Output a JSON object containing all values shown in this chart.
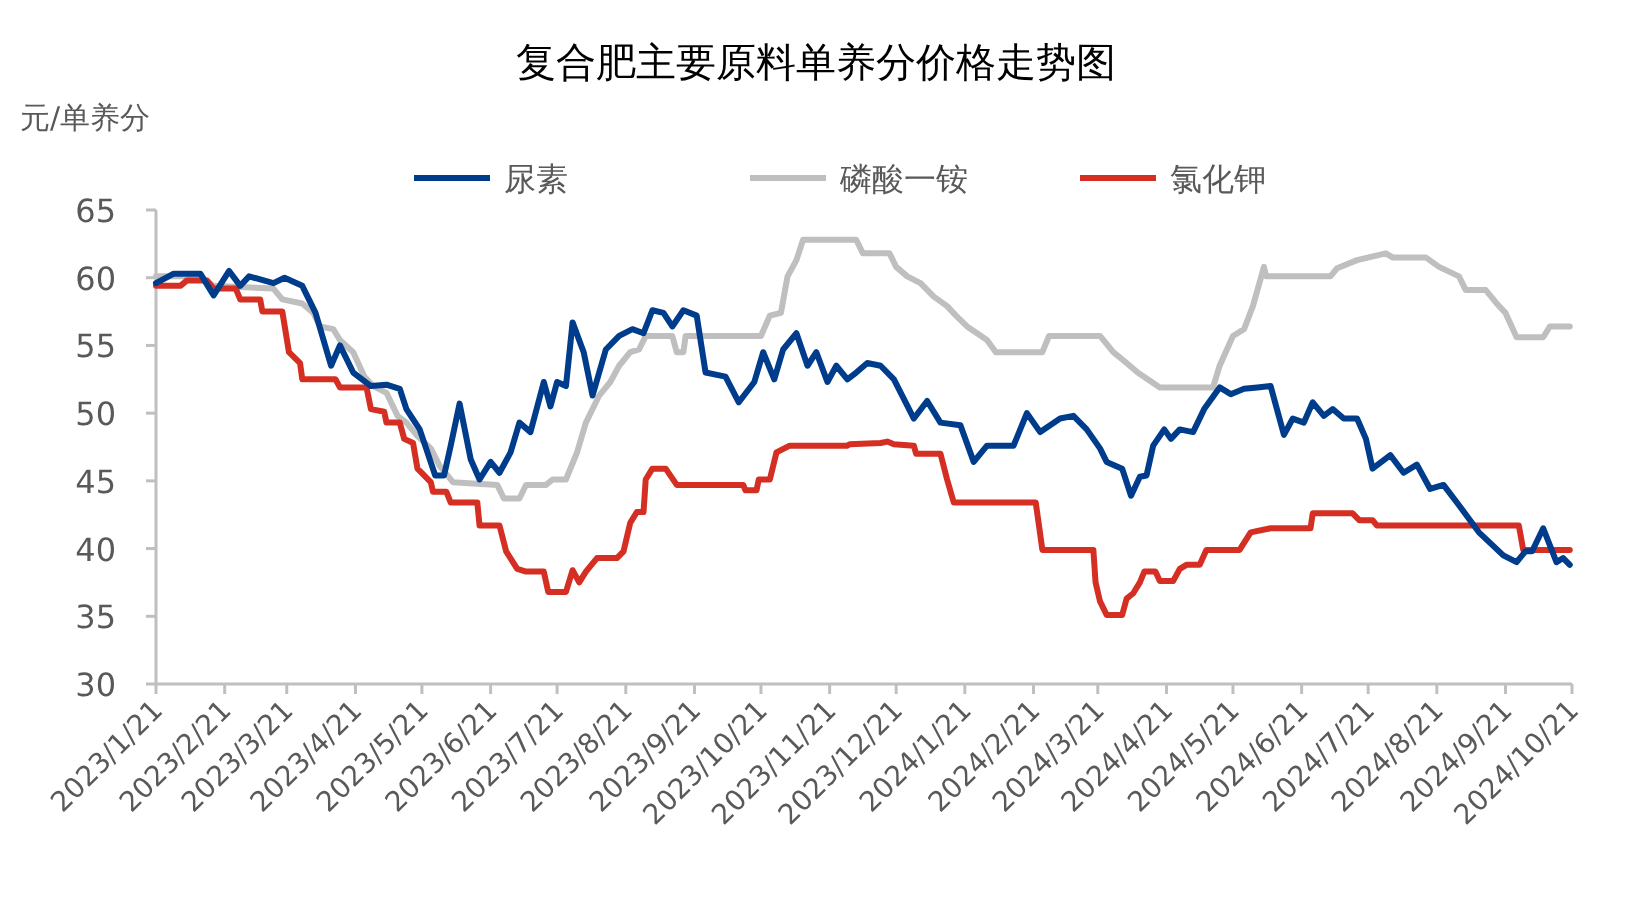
{
  "chart_data": {
    "type": "line",
    "title": "复合肥主要原料单养分价格走势图",
    "ylabel": "元/单养分",
    "xlim": [
      "2023-01-21",
      "2024-10-21"
    ],
    "xticks": [
      {
        "value": "2023-01-21",
        "label": "2023/1/21"
      },
      {
        "value": "2023-02-21",
        "label": "2023/2/21"
      },
      {
        "value": "2023-03-21",
        "label": "2023/3/21"
      },
      {
        "value": "2023-04-21",
        "label": "2023/4/21"
      },
      {
        "value": "2023-05-21",
        "label": "2023/5/21"
      },
      {
        "value": "2023-06-21",
        "label": "2023/6/21"
      },
      {
        "value": "2023-07-21",
        "label": "2023/7/21"
      },
      {
        "value": "2023-08-21",
        "label": "2023/8/21"
      },
      {
        "value": "2023-09-21",
        "label": "2023/9/21"
      },
      {
        "value": "2023-10-21",
        "label": "2023/10/21"
      },
      {
        "value": "2023-11-21",
        "label": "2023/11/21"
      },
      {
        "value": "2023-12-21",
        "label": "2023/12/21"
      },
      {
        "value": "2024-01-21",
        "label": "2024/1/21"
      },
      {
        "value": "2024-02-21",
        "label": "2024/2/21"
      },
      {
        "value": "2024-03-21",
        "label": "2024/3/21"
      },
      {
        "value": "2024-04-21",
        "label": "2024/4/21"
      },
      {
        "value": "2024-05-21",
        "label": "2024/5/21"
      },
      {
        "value": "2024-06-21",
        "label": "2024/6/21"
      },
      {
        "value": "2024-07-21",
        "label": "2024/7/21"
      },
      {
        "value": "2024-08-21",
        "label": "2024/8/21"
      },
      {
        "value": "2024-09-21",
        "label": "2024/9/21"
      },
      {
        "value": "2024-10-21",
        "label": "2024/10/21"
      }
    ],
    "ylim": [
      30,
      65
    ],
    "yticks": [
      30,
      35,
      40,
      45,
      50,
      55,
      60,
      65
    ],
    "legend": "top",
    "series": [
      {
        "name": "尿素",
        "color": "#003c8c",
        "x": [
          "2023-01-21",
          "2023-01-29",
          "2023-02-10",
          "2023-02-16",
          "2023-02-23",
          "2023-02-28",
          "2023-03-04",
          "2023-03-15",
          "2023-03-20",
          "2023-03-28",
          "2023-04-03",
          "2023-04-10",
          "2023-04-14",
          "2023-04-20",
          "2023-04-28",
          "2023-05-05",
          "2023-05-11",
          "2023-05-14",
          "2023-05-20",
          "2023-05-27",
          "2023-05-31",
          "2023-06-03",
          "2023-06-07",
          "2023-06-12",
          "2023-06-16",
          "2023-06-21",
          "2023-06-25",
          "2023-06-30",
          "2023-07-04",
          "2023-07-09",
          "2023-07-15",
          "2023-07-18",
          "2023-07-21",
          "2023-07-25",
          "2023-07-28",
          "2023-08-02",
          "2023-08-06",
          "2023-08-12",
          "2023-08-18",
          "2023-08-24",
          "2023-08-29",
          "2023-09-02",
          "2023-09-07",
          "2023-09-11",
          "2023-09-16",
          "2023-09-22",
          "2023-09-26",
          "2023-10-05",
          "2023-10-11",
          "2023-10-18",
          "2023-10-22",
          "2023-10-27",
          "2023-10-31",
          "2023-11-06",
          "2023-11-11",
          "2023-11-15",
          "2023-11-20",
          "2023-11-24",
          "2023-11-29",
          "2023-12-03",
          "2023-12-08",
          "2023-12-14",
          "2023-12-20",
          "2023-12-29",
          "2024-01-04",
          "2024-01-10",
          "2024-01-19",
          "2024-01-25",
          "2024-01-31",
          "2024-02-12",
          "2024-02-18",
          "2024-02-24",
          "2024-03-04",
          "2024-03-10",
          "2024-03-16",
          "2024-03-22",
          "2024-03-25",
          "2024-04-01",
          "2024-04-05",
          "2024-04-09",
          "2024-04-12",
          "2024-04-15",
          "2024-04-20",
          "2024-04-23",
          "2024-04-27",
          "2024-05-03",
          "2024-05-08",
          "2024-05-15",
          "2024-05-20",
          "2024-05-26",
          "2024-06-01",
          "2024-06-07",
          "2024-06-13",
          "2024-06-17",
          "2024-06-22",
          "2024-06-26",
          "2024-07-01",
          "2024-07-05",
          "2024-07-10",
          "2024-07-16",
          "2024-07-20",
          "2024-07-23",
          "2024-07-31",
          "2024-08-06",
          "2024-08-12",
          "2024-08-18",
          "2024-08-24",
          "2024-08-31",
          "2024-09-09",
          "2024-09-20",
          "2024-09-26",
          "2024-09-30",
          "2024-10-03",
          "2024-10-08",
          "2024-10-14",
          "2024-10-17",
          "2024-10-20"
        ],
        "values": [
          59.6,
          60.3,
          60.3,
          58.7,
          60.5,
          59.4,
          60.1,
          59.6,
          60,
          59.4,
          57.4,
          53.5,
          55,
          53,
          52,
          52.1,
          51.8,
          50.3,
          48.8,
          45.4,
          45.4,
          47.6,
          50.7,
          46.6,
          45.1,
          46.4,
          45.6,
          47.1,
          49.3,
          48.6,
          52.3,
          50.5,
          52.3,
          52,
          56.7,
          54.5,
          51.3,
          54.7,
          55.7,
          56.2,
          55.9,
          57.6,
          57.4,
          56.4,
          57.6,
          57.2,
          53,
          52.7,
          50.8,
          52.3,
          54.5,
          52.5,
          54.7,
          55.9,
          53.5,
          54.5,
          52.3,
          53.5,
          52.5,
          53,
          53.7,
          53.5,
          52.5,
          49.6,
          50.9,
          49.3,
          49.1,
          46.4,
          47.6,
          47.6,
          50,
          48.6,
          49.6,
          49.8,
          48.8,
          47.4,
          46.4,
          45.9,
          43.9,
          45.3,
          45.4,
          47.6,
          48.8,
          48.1,
          48.8,
          48.6,
          50.3,
          51.9,
          51.4,
          51.8,
          51.9,
          52,
          48.4,
          49.6,
          49.3,
          50.8,
          49.8,
          50.3,
          49.6,
          49.6,
          48.1,
          45.9,
          46.9,
          45.6,
          46.2,
          44.4,
          44.7,
          43.2,
          41.2,
          39.5,
          39,
          39.8,
          39.8,
          41.5,
          39,
          39.3,
          38.8
        ]
      },
      {
        "name": "磷酸一铵",
        "color": "#bfbfbf",
        "x": [
          "2023-01-21",
          "2023-02-10",
          "2023-02-16",
          "2023-03-15",
          "2023-03-19",
          "2023-03-28",
          "2023-04-02",
          "2023-04-05",
          "2023-04-11",
          "2023-04-14",
          "2023-04-20",
          "2023-04-25",
          "2023-04-29",
          "2023-05-05",
          "2023-05-10",
          "2023-05-14",
          "2023-05-19",
          "2023-05-25",
          "2023-05-29",
          "2023-06-04",
          "2023-06-24",
          "2023-06-27",
          "2023-07-04",
          "2023-07-07",
          "2023-07-16",
          "2023-07-19",
          "2023-07-25",
          "2023-07-30",
          "2023-08-03",
          "2023-08-09",
          "2023-08-14",
          "2023-08-18",
          "2023-08-23",
          "2023-08-27",
          "2023-08-30",
          "2023-09-11",
          "2023-09-13",
          "2023-09-16",
          "2023-09-17",
          "2023-10-21",
          "2023-10-25",
          "2023-10-30",
          "2023-11-02",
          "2023-11-06",
          "2023-11-09",
          "2023-12-03",
          "2023-12-06",
          "2023-12-18",
          "2023-12-21",
          "2023-12-26",
          "2024-01-01",
          "2024-01-07",
          "2024-01-13",
          "2024-01-17",
          "2024-01-22",
          "2024-01-31",
          "2024-02-04",
          "2024-02-25",
          "2024-02-28",
          "2024-03-22",
          "2024-03-28",
          "2024-04-03",
          "2024-04-08",
          "2024-04-18",
          "2024-05-12",
          "2024-05-15",
          "2024-05-21",
          "2024-05-26",
          "2024-05-30",
          "2024-06-04",
          "2024-06-05",
          "2024-07-04",
          "2024-07-07",
          "2024-07-16",
          "2024-07-29",
          "2024-08-01",
          "2024-08-16",
          "2024-08-22",
          "2024-08-31",
          "2024-09-03",
          "2024-09-12",
          "2024-09-17",
          "2024-09-21",
          "2024-09-26",
          "2024-10-08",
          "2024-10-11",
          "2024-10-20"
        ],
        "values": [
          60.1,
          60.1,
          59.4,
          59.2,
          58.4,
          58.1,
          57.4,
          56.4,
          56.2,
          55.4,
          54.5,
          52.7,
          52,
          51.5,
          49.8,
          49.3,
          48.3,
          47.4,
          46.1,
          44.9,
          44.7,
          43.7,
          43.7,
          44.7,
          44.7,
          45.1,
          45.1,
          47.1,
          49.3,
          51.3,
          52.3,
          53.5,
          54.5,
          54.7,
          55.7,
          55.7,
          54.5,
          54.5,
          55.7,
          55.7,
          57.2,
          57.4,
          60.1,
          61.3,
          62.8,
          62.8,
          61.8,
          61.8,
          60.8,
          60.1,
          59.6,
          58.6,
          57.9,
          57.2,
          56.4,
          55.4,
          54.5,
          54.5,
          55.7,
          55.7,
          54.5,
          53.7,
          53,
          51.9,
          51.9,
          53.5,
          55.7,
          56.2,
          57.9,
          60.8,
          60.1,
          60.1,
          60.7,
          61.3,
          61.8,
          61.5,
          61.5,
          60.8,
          60.1,
          59.1,
          59.1,
          58.1,
          57.4,
          55.6,
          55.6,
          56.4,
          56.4
        ]
      },
      {
        "name": "氯化钾",
        "color": "#d42f22",
        "x": [
          "2023-01-21",
          "2023-02-01",
          "2023-02-04",
          "2023-02-13",
          "2023-02-16",
          "2023-02-26",
          "2023-02-28",
          "2023-03-09",
          "2023-03-10",
          "2023-03-19",
          "2023-03-22",
          "2023-03-27",
          "2023-03-28",
          "2023-04-12",
          "2023-04-14",
          "2023-04-26",
          "2023-04-28",
          "2023-05-04",
          "2023-05-05",
          "2023-05-11",
          "2023-05-13",
          "2023-05-17",
          "2023-05-19",
          "2023-05-25",
          "2023-05-26",
          "2023-06-01",
          "2023-06-03",
          "2023-06-15",
          "2023-06-16",
          "2023-06-25",
          "2023-06-28",
          "2023-07-03",
          "2023-07-07",
          "2023-07-15",
          "2023-07-17",
          "2023-07-25",
          "2023-07-28",
          "2023-07-31",
          "2023-08-03",
          "2023-08-08",
          "2023-08-17",
          "2023-08-20",
          "2023-08-23",
          "2023-08-26",
          "2023-08-29",
          "2023-08-30",
          "2023-09-02",
          "2023-09-08",
          "2023-09-13",
          "2023-10-13",
          "2023-10-14",
          "2023-10-19",
          "2023-10-20",
          "2023-10-25",
          "2023-10-28",
          "2023-11-03",
          "2023-11-29",
          "2023-11-30",
          "2023-12-14",
          "2023-12-17",
          "2023-12-20",
          "2023-12-29",
          "2023-12-30",
          "2024-01-10",
          "2024-01-13",
          "2024-01-16",
          "2024-02-22",
          "2024-02-25",
          "2024-03-19",
          "2024-03-20",
          "2024-03-22",
          "2024-03-25",
          "2024-04-01",
          "2024-04-03",
          "2024-04-06",
          "2024-04-09",
          "2024-04-11",
          "2024-04-16",
          "2024-04-18",
          "2024-04-24",
          "2024-04-27",
          "2024-04-30",
          "2024-05-06",
          "2024-05-09",
          "2024-05-24",
          "2024-05-29",
          "2024-06-07",
          "2024-06-25",
          "2024-06-26",
          "2024-07-14",
          "2024-07-17",
          "2024-07-23",
          "2024-07-25",
          "2024-09-27",
          "2024-09-29",
          "2024-10-20"
        ],
        "values": [
          59.4,
          59.4,
          59.8,
          59.8,
          59.2,
          59.2,
          58.4,
          58.4,
          57.5,
          57.5,
          54.5,
          53.7,
          52.5,
          52.5,
          51.9,
          51.9,
          50.3,
          50.1,
          49.3,
          49.3,
          48.1,
          47.8,
          45.9,
          44.9,
          44.2,
          44.2,
          43.4,
          43.4,
          41.7,
          41.7,
          39.8,
          38.5,
          38.3,
          38.3,
          36.8,
          36.8,
          38.4,
          37.5,
          38.3,
          39.3,
          39.3,
          39.8,
          41.9,
          42.7,
          42.7,
          45.1,
          45.9,
          45.9,
          44.7,
          44.7,
          44.3,
          44.3,
          45.1,
          45.1,
          47.1,
          47.6,
          47.6,
          47.7,
          47.8,
          47.9,
          47.7,
          47.6,
          47,
          47,
          45.1,
          43.4,
          43.4,
          39.9,
          39.9,
          37.5,
          36.1,
          35.1,
          35.1,
          36.3,
          36.7,
          37.5,
          38.3,
          38.3,
          37.6,
          37.6,
          38.5,
          38.8,
          38.8,
          39.9,
          39.9,
          41.2,
          41.5,
          41.5,
          42.6,
          42.6,
          42.1,
          42.1,
          41.7,
          41.7,
          39.9,
          39.9
        ]
      }
    ]
  }
}
